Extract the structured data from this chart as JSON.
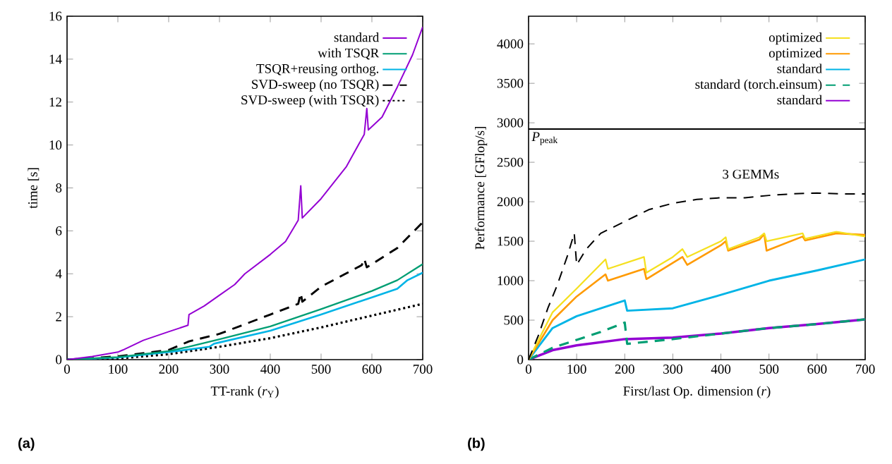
{
  "chart_data": [
    {
      "type": "line",
      "xlabel": "TT-rank (*r*$_{Y}$)",
      "ylabel": "time [s]",
      "xlim": [
        0,
        700
      ],
      "ylim": [
        0,
        16
      ],
      "xticks": [
        0,
        100,
        200,
        300,
        400,
        500,
        600,
        700
      ],
      "yticks": [
        0,
        2,
        4,
        6,
        8,
        10,
        12,
        14,
        16
      ],
      "legend": "top right",
      "annotations": [
        "**(a)**"
      ],
      "series": [
        {
          "name": "standard",
          "color": "#9400d3",
          "line_style": "solid",
          "x": [
            0,
            50,
            100,
            110,
            150,
            200,
            238,
            240,
            270,
            300,
            330,
            350,
            400,
            430,
            455,
            460,
            463,
            500,
            550,
            585,
            590,
            593,
            620,
            650,
            680,
            700
          ],
          "values": [
            0,
            0.15,
            0.35,
            0.45,
            0.9,
            1.3,
            1.6,
            2.1,
            2.5,
            3.0,
            3.5,
            4.0,
            4.9,
            5.5,
            6.5,
            8.1,
            6.6,
            7.5,
            9.0,
            10.5,
            11.7,
            10.7,
            11.3,
            12.7,
            14.2,
            15.5
          ]
        },
        {
          "name": "with TSQR",
          "color": "#009e73",
          "line_style": "solid",
          "x": [
            0,
            100,
            200,
            240,
            300,
            400,
            500,
            600,
            650,
            700
          ],
          "values": [
            0,
            0.12,
            0.4,
            0.6,
            0.95,
            1.55,
            2.35,
            3.2,
            3.7,
            4.45
          ]
        },
        {
          "name": "TSQR+reusing orthog.",
          "color": "#00b4e6",
          "line_style": "solid",
          "x": [
            0,
            100,
            200,
            280,
            290,
            300,
            400,
            500,
            600,
            650,
            670,
            700
          ],
          "values": [
            0,
            0.1,
            0.35,
            0.6,
            0.75,
            0.8,
            1.35,
            2.1,
            2.9,
            3.3,
            3.7,
            4.05
          ]
        },
        {
          "name": "SVD-sweep (no TSQR)",
          "color": "#000000",
          "line_style": "dashed",
          "x": [
            0,
            100,
            200,
            240,
            300,
            400,
            455,
            460,
            463,
            500,
            580,
            585,
            590,
            650,
            700
          ],
          "values": [
            0,
            0.15,
            0.45,
            0.85,
            1.2,
            2.1,
            2.6,
            3.1,
            2.7,
            3.4,
            4.4,
            4.7,
            4.3,
            5.2,
            6.4
          ]
        },
        {
          "name": "SVD-sweep (with TSQR)",
          "color": "#000000",
          "line_style": "dotted",
          "x": [
            0,
            100,
            200,
            300,
            400,
            500,
            600,
            700
          ],
          "values": [
            0,
            0.05,
            0.25,
            0.6,
            1.0,
            1.5,
            2.05,
            2.6
          ]
        }
      ]
    },
    {
      "type": "line",
      "xlabel": "First/last Op. dimension (*r*)",
      "ylabel": "Performance [GFlop/s]",
      "xlim": [
        0,
        700
      ],
      "ylim": [
        0,
        4350
      ],
      "xticks": [
        0,
        100,
        200,
        300,
        400,
        500,
        600,
        700
      ],
      "yticks": [
        0,
        500,
        1000,
        1500,
        2000,
        2500,
        3000,
        3500,
        4000
      ],
      "legend": "top right",
      "ref_lines": [
        {
          "axis": "y",
          "value": 2920,
          "label": "*P*$_{peak}$",
          "color": "#000000"
        }
      ],
      "annotations": [
        "3 GEMMs",
        "**(b)**"
      ],
      "series": [
        {
          "color": "#000000",
          "line_style": "dashed",
          "x": [
            0,
            20,
            40,
            60,
            80,
            95,
            100,
            120,
            150,
            200,
            250,
            300,
            350,
            400,
            450,
            500,
            550,
            600,
            650,
            700
          ],
          "values": [
            0,
            300,
            650,
            950,
            1300,
            1600,
            1200,
            1400,
            1600,
            1750,
            1900,
            1980,
            2030,
            2050,
            2050,
            2080,
            2100,
            2110,
            2100,
            2100
          ]
        },
        {
          "name": "optimized",
          "color": "#f5e020",
          "line_style": "solid",
          "x": [
            0,
            50,
            100,
            160,
            165,
            240,
            245,
            300,
            320,
            330,
            400,
            410,
            415,
            480,
            490,
            495,
            570,
            575,
            640,
            700
          ],
          "values": [
            0,
            600,
            900,
            1270,
            1150,
            1300,
            1100,
            1300,
            1400,
            1300,
            1500,
            1550,
            1400,
            1550,
            1600,
            1500,
            1600,
            1530,
            1620,
            1560
          ]
        },
        {
          "name": "optimized",
          "color": "#ff9a00",
          "line_style": "solid",
          "x": [
            0,
            50,
            100,
            160,
            165,
            240,
            245,
            320,
            330,
            400,
            410,
            415,
            480,
            490,
            495,
            570,
            575,
            640,
            700
          ],
          "values": [
            0,
            500,
            800,
            1080,
            1000,
            1150,
            1020,
            1300,
            1200,
            1450,
            1500,
            1380,
            1520,
            1590,
            1380,
            1560,
            1510,
            1600,
            1580
          ]
        },
        {
          "name": "standard",
          "color": "#00b4e6",
          "line_style": "solid",
          "x": [
            0,
            50,
            100,
            200,
            205,
            300,
            400,
            500,
            600,
            700
          ],
          "values": [
            0,
            400,
            550,
            750,
            620,
            650,
            820,
            1000,
            1130,
            1270
          ]
        },
        {
          "name": "standard (torch.einsum)",
          "color": "#009e73",
          "line_style": "dashed",
          "x": [
            0,
            50,
            100,
            150,
            200,
            205,
            300,
            400,
            500,
            600,
            700
          ],
          "values": [
            0,
            150,
            250,
            350,
            470,
            200,
            260,
            330,
            400,
            450,
            510
          ]
        },
        {
          "name": "standard",
          "color": "#9400d3",
          "line_style": "solid",
          "x": [
            0,
            50,
            100,
            200,
            300,
            400,
            500,
            600,
            700
          ],
          "values": [
            0,
            120,
            180,
            260,
            280,
            330,
            400,
            450,
            510
          ]
        }
      ]
    }
  ]
}
